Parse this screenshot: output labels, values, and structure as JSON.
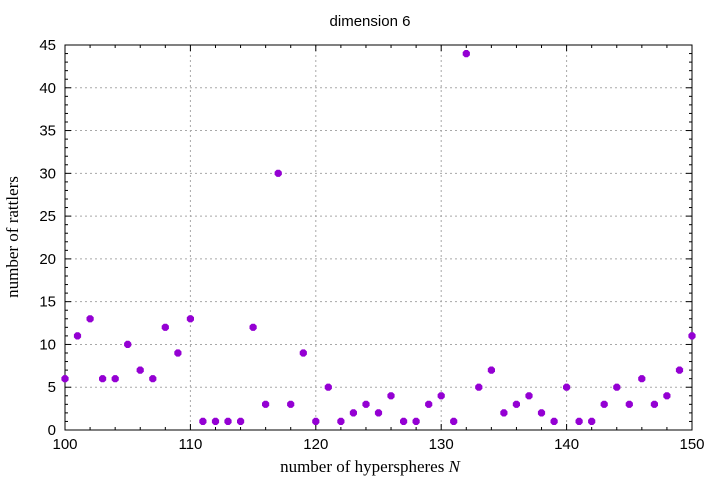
{
  "chart_data": {
    "type": "scatter",
    "title": "dimension 6",
    "xlabel": "number of hyperspheres",
    "xlabel_var": "N",
    "ylabel": "number of rattlers",
    "xlim": [
      100,
      150
    ],
    "ylim": [
      0,
      45
    ],
    "xticks": [
      100,
      110,
      120,
      130,
      140,
      150
    ],
    "yticks": [
      0,
      5,
      10,
      15,
      20,
      25,
      30,
      35,
      40,
      45
    ],
    "grid": true,
    "marker_color": "#9400d3",
    "series": [
      {
        "x": [
          100,
          101,
          102,
          103,
          104,
          105,
          106,
          107,
          108,
          109,
          110,
          111,
          112,
          113,
          114,
          115,
          116,
          117,
          118,
          119,
          120,
          121,
          122,
          123,
          124,
          125,
          126,
          127,
          128,
          129,
          130,
          131,
          132,
          133,
          134,
          135,
          136,
          137,
          138,
          139,
          140,
          141,
          142,
          143,
          144,
          145,
          146,
          147,
          148,
          149,
          150
        ],
        "y": [
          6,
          11,
          13,
          6,
          6,
          10,
          7,
          6,
          12,
          9,
          13,
          1,
          1,
          1,
          1,
          12,
          3,
          30,
          3,
          9,
          1,
          5,
          1,
          2,
          3,
          2,
          4,
          1,
          1,
          3,
          4,
          1,
          44,
          5,
          7,
          2,
          3,
          4,
          2,
          1,
          5,
          1,
          1,
          3,
          5,
          3,
          6,
          3,
          4,
          7,
          11
        ]
      }
    ]
  }
}
